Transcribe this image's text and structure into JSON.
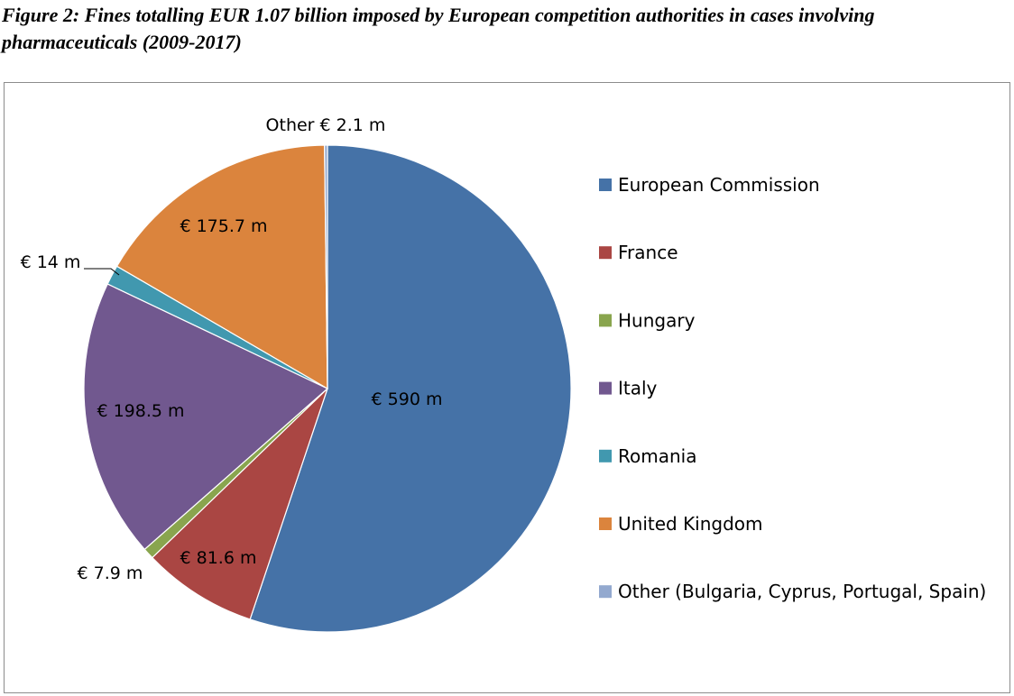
{
  "figure": {
    "title": "Figure 2: Fines totalling EUR 1.07 billion imposed by European competition authorities in cases involving pharmaceuticals (2009-2017)"
  },
  "chart_data": {
    "type": "pie",
    "unit": "€ m",
    "start_angle_deg": 0,
    "direction": "clockwise",
    "legend_position": "right",
    "slices": [
      {
        "name": "European Commission",
        "value": 590,
        "label": "€ 590 m",
        "color": "#4572A7"
      },
      {
        "name": "France",
        "value": 81.6,
        "label": "€ 81.6 m",
        "color": "#AA4643"
      },
      {
        "name": "Hungary",
        "value": 7.9,
        "label": "€ 7.9 m",
        "color": "#89A54E"
      },
      {
        "name": "Italy",
        "value": 198.5,
        "label": "€ 198.5 m",
        "color": "#71588F"
      },
      {
        "name": "Romania",
        "value": 14,
        "label": "€ 14 m",
        "color": "#4198AF"
      },
      {
        "name": "United Kingdom",
        "value": 175.7,
        "label": "€ 175.7 m",
        "color": "#DB843D"
      },
      {
        "name": "Other (Bulgaria, Cyprus, Portugal, Spain)",
        "value": 2.1,
        "label": "Other € 2.1 m",
        "color": "#93A9CF"
      }
    ]
  }
}
